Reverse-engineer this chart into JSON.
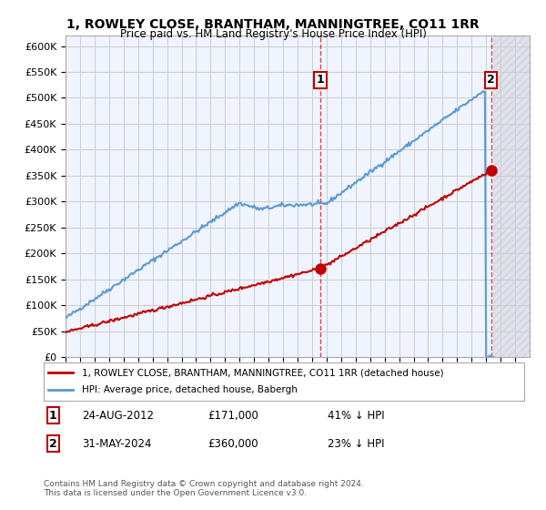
{
  "title": "1, ROWLEY CLOSE, BRANTHAM, MANNINGTREE, CO11 1RR",
  "subtitle": "Price paid vs. HM Land Registry's House Price Index (HPI)",
  "legend_entry1": "1, ROWLEY CLOSE, BRANTHAM, MANNINGTREE, CO11 1RR (detached house)",
  "legend_entry2": "HPI: Average price, detached house, Babergh",
  "annotation1_label": "1",
  "annotation1_date": "24-AUG-2012",
  "annotation1_price": "£171,000",
  "annotation1_hpi": "41% ↓ HPI",
  "annotation2_label": "2",
  "annotation2_date": "31-MAY-2024",
  "annotation2_price": "£360,000",
  "annotation2_hpi": "23% ↓ HPI",
  "footnote": "Contains HM Land Registry data © Crown copyright and database right 2024.\nThis data is licensed under the Open Government Licence v3.0.",
  "hpi_color": "#5b9bd5",
  "price_color": "#c00000",
  "annotation_color": "#c00000",
  "grid_color": "#d0d0d0",
  "background_color": "#ffffff",
  "plot_bg_color": "#f0f4ff",
  "ylim": [
    0,
    620000
  ],
  "yticks": [
    0,
    50000,
    100000,
    150000,
    200000,
    250000,
    300000,
    350000,
    400000,
    450000,
    500000,
    550000,
    600000
  ],
  "year_start": 1995,
  "year_end": 2027
}
